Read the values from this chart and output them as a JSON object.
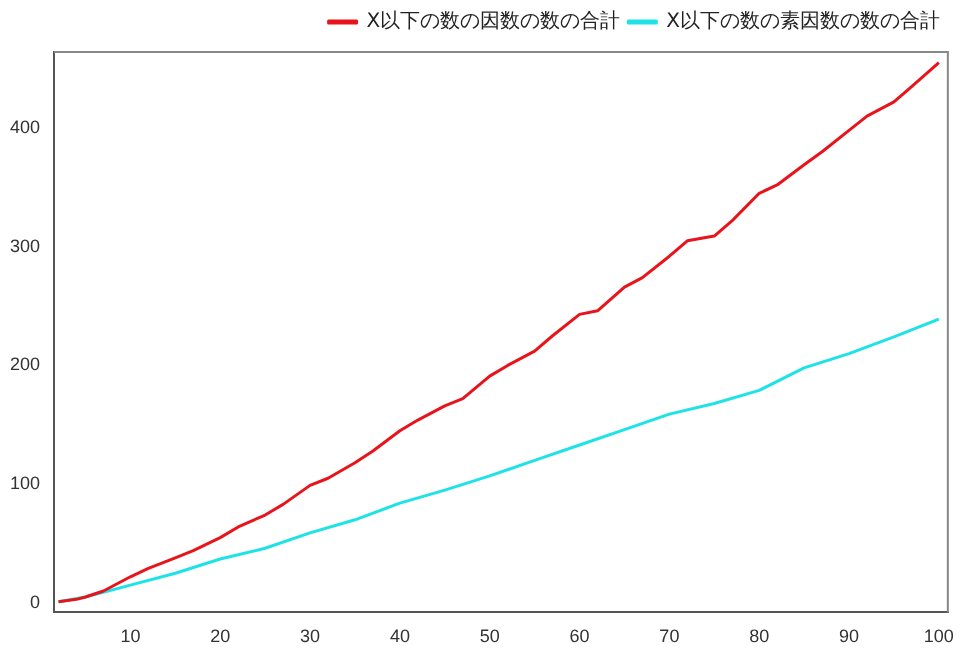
{
  "chart_data": {
    "type": "line",
    "xlim": [
      1.5,
      101
    ],
    "xticks": [
      10,
      20,
      30,
      40,
      50,
      60,
      70,
      80,
      90,
      100
    ],
    "ylim": [
      -8,
      464
    ],
    "yticks": [
      0,
      100,
      200,
      300,
      400
    ],
    "grid": false,
    "legend": "top right",
    "marker": "none",
    "line_style": "solid",
    "series": [
      {
        "name": "X以下の数の因数の数の合計",
        "color": "#e8141c",
        "x": [
          2,
          4,
          5,
          7,
          10,
          12,
          15,
          17,
          20,
          22,
          25,
          27,
          30,
          32,
          35,
          37,
          40,
          42,
          45,
          47,
          50,
          52,
          55,
          57,
          60,
          62,
          65,
          67,
          70,
          72,
          75,
          77,
          80,
          82,
          85,
          87,
          90,
          92,
          95,
          97,
          100
        ],
        "values": [
          1,
          3,
          5,
          10,
          22,
          29,
          38,
          44,
          55,
          64,
          74,
          83,
          99,
          105,
          118,
          128,
          145,
          154,
          166,
          172,
          191,
          200,
          212,
          225,
          243,
          246,
          266,
          274,
          292,
          305,
          309,
          322,
          345,
          352,
          369,
          380,
          398,
          410,
          422,
          435,
          455
        ]
      },
      {
        "name": "X以下の数の素因数の数の合計",
        "color": "#1ee3e6",
        "x": [
          2,
          5,
          10,
          15,
          20,
          25,
          30,
          35,
          40,
          45,
          50,
          55,
          60,
          65,
          70,
          75,
          80,
          85,
          90,
          95,
          100
        ],
        "values": [
          1,
          5,
          15,
          25,
          37,
          46,
          59,
          70,
          84,
          95,
          107,
          120,
          133,
          146,
          159,
          168,
          179,
          198,
          210,
          224,
          239
        ]
      }
    ]
  }
}
